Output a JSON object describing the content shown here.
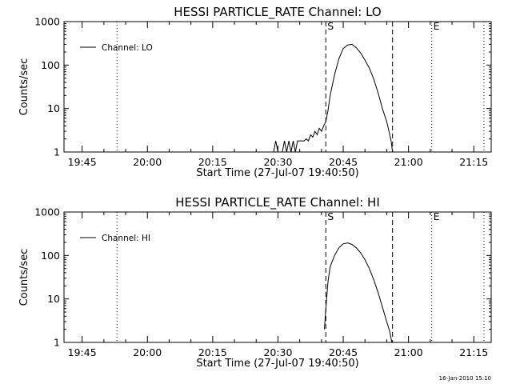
{
  "timestamp": "16-Jan-2010 15:10",
  "chart_data": [
    {
      "type": "line",
      "title": "HESSI PARTICLE_RATE Channel: LO",
      "xlabel": "Start Time (27-Jul-07 19:40:50)",
      "ylabel": "Counts/sec",
      "y_scale": "log",
      "xlim": [
        "19:40:50",
        "21:19:00"
      ],
      "ylim": [
        1,
        1000
      ],
      "x_tick_labels": [
        "19:45",
        "20:00",
        "20:15",
        "20:30",
        "20:45",
        "21:00",
        "21:15"
      ],
      "y_tick_labels": [
        "1",
        "10",
        "100",
        "1000"
      ],
      "legend": {
        "position": "top-left",
        "label": "Channel: LO"
      },
      "markers": [
        {
          "time": "19:53:00",
          "style": "dotted",
          "label": ""
        },
        {
          "time": "20:41:00",
          "style": "dashed",
          "label": "S"
        },
        {
          "time": "20:56:20",
          "style": "dashed",
          "label": ""
        },
        {
          "time": "21:05:20",
          "style": "dotted",
          "label": "E"
        },
        {
          "time": "21:17:20",
          "style": "dotted",
          "label": ""
        }
      ],
      "series": [
        {
          "name": "Channel: LO",
          "points": [
            [
              "20:29:00",
              1
            ],
            [
              "20:29:30",
              1.8
            ],
            [
              "20:30:00",
              1
            ],
            [
              "20:31:00",
              1
            ],
            [
              "20:31:30",
              1.8
            ],
            [
              "20:32:00",
              1
            ],
            [
              "20:32:30",
              1.8
            ],
            [
              "20:33:00",
              1
            ],
            [
              "20:33:30",
              1.8
            ],
            [
              "20:34:00",
              1
            ],
            [
              "20:34:30",
              1.8
            ],
            [
              "20:35:00",
              1.8
            ],
            [
              "20:36:00",
              1.8
            ],
            [
              "20:36:30",
              2
            ],
            [
              "20:37:00",
              1.8
            ],
            [
              "20:37:30",
              2.5
            ],
            [
              "20:38:00",
              2.2
            ],
            [
              "20:38:30",
              3
            ],
            [
              "20:39:00",
              2.5
            ],
            [
              "20:39:30",
              3.5
            ],
            [
              "20:40:00",
              3
            ],
            [
              "20:40:30",
              4
            ],
            [
              "20:41:00",
              5
            ],
            [
              "20:41:30",
              9
            ],
            [
              "20:42:00",
              20
            ],
            [
              "20:43:00",
              60
            ],
            [
              "20:44:00",
              140
            ],
            [
              "20:45:00",
              240
            ],
            [
              "20:46:00",
              290
            ],
            [
              "20:47:00",
              300
            ],
            [
              "20:48:00",
              250
            ],
            [
              "20:49:00",
              190
            ],
            [
              "20:50:00",
              130
            ],
            [
              "20:51:00",
              85
            ],
            [
              "20:52:00",
              48
            ],
            [
              "20:53:00",
              23
            ],
            [
              "20:54:00",
              10
            ],
            [
              "20:55:00",
              5
            ],
            [
              "20:55:30",
              3
            ],
            [
              "20:56:00",
              1.8
            ],
            [
              "20:56:20",
              1
            ]
          ]
        }
      ]
    },
    {
      "type": "line",
      "title": "HESSI PARTICLE_RATE Channel: HI",
      "xlabel": "Start Time (27-Jul-07 19:40:50)",
      "ylabel": "Counts/sec",
      "y_scale": "log",
      "xlim": [
        "19:40:50",
        "21:19:00"
      ],
      "ylim": [
        1,
        1000
      ],
      "x_tick_labels": [
        "19:45",
        "20:00",
        "20:15",
        "20:30",
        "20:45",
        "21:00",
        "21:15"
      ],
      "y_tick_labels": [
        "1",
        "10",
        "100",
        "1000"
      ],
      "legend": {
        "position": "top-left",
        "label": "Channel: HI"
      },
      "markers": [
        {
          "time": "19:53:00",
          "style": "dotted",
          "label": ""
        },
        {
          "time": "20:41:00",
          "style": "dashed",
          "label": "S"
        },
        {
          "time": "20:56:20",
          "style": "dashed",
          "label": ""
        },
        {
          "time": "21:05:20",
          "style": "dotted",
          "label": "E"
        },
        {
          "time": "21:17:20",
          "style": "dotted",
          "label": ""
        }
      ],
      "series": [
        {
          "name": "Channel: HI",
          "points": [
            [
              "20:40:40",
              2
            ],
            [
              "20:41:00",
              6
            ],
            [
              "20:41:30",
              25
            ],
            [
              "20:42:00",
              55
            ],
            [
              "20:43:00",
              100
            ],
            [
              "20:44:00",
              150
            ],
            [
              "20:45:00",
              185
            ],
            [
              "20:46:00",
              195
            ],
            [
              "20:47:00",
              180
            ],
            [
              "20:48:00",
              150
            ],
            [
              "20:49:00",
              115
            ],
            [
              "20:50:00",
              80
            ],
            [
              "20:51:00",
              50
            ],
            [
              "20:52:00",
              28
            ],
            [
              "20:53:00",
              14
            ],
            [
              "20:54:00",
              6.5
            ],
            [
              "20:55:00",
              3
            ],
            [
              "20:55:40",
              1.8
            ],
            [
              "20:56:10",
              1
            ]
          ]
        }
      ]
    }
  ]
}
